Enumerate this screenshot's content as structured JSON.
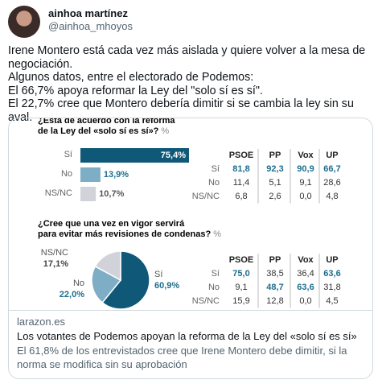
{
  "tweet": {
    "name": "ainhoa martínez",
    "handle": "@ainhoa_mhoyos",
    "lines": [
      "Irene Montero está cada vez más aislada y quiere volver a la mesa de negociación.",
      "Algunos datos, entre el electorado de Podemos:",
      "El 66,7% apoya reformar la Ley del \"solo sí es sí\".",
      "El 22,7% cree que Montero debería dimitir si se cambia la ley sin su aval."
    ]
  },
  "image": {
    "chart1": {
      "type": "bar",
      "title_lines": [
        "¿Está de acuerdo con la reforma",
        "de la Ley del «solo sí es sí»?"
      ],
      "unit": "%",
      "categories": [
        "Sí",
        "No",
        "NS/NC"
      ],
      "values": [
        75.4,
        13.9,
        10.7
      ],
      "value_labels": [
        "75,4%",
        "13,9%",
        "10,7%"
      ],
      "colors": [
        "#0f5878",
        "#7eadc6",
        "#d2d2da"
      ],
      "label_colors": [
        "#ffffff",
        "#1f6d8e",
        "#555555"
      ]
    },
    "table1": {
      "headers": [
        "PSOE",
        "PP",
        "Vox",
        "UP"
      ],
      "rows": [
        {
          "label": "Sí",
          "cells": [
            "81,8",
            "92,3",
            "90,9",
            "66,7"
          ],
          "highlight": [
            true,
            true,
            true,
            true
          ]
        },
        {
          "label": "No",
          "cells": [
            "11,4",
            "5,1",
            "9,1",
            "28,6"
          ],
          "highlight": [
            false,
            false,
            false,
            false
          ]
        },
        {
          "label": "NS/NC",
          "cells": [
            "6,8",
            "2,6",
            "0,0",
            "4,8"
          ],
          "highlight": [
            false,
            false,
            false,
            false
          ]
        }
      ]
    },
    "chart2": {
      "type": "pie",
      "title_lines": [
        "¿Cree que una vez en vigor servirá",
        "para evitar más revisiones de condenas?"
      ],
      "unit": "%",
      "categories": [
        "Sí",
        "No",
        "NS/NC"
      ],
      "values": [
        60.9,
        22.0,
        17.1
      ],
      "value_labels": [
        "60,9%",
        "22,0%",
        "17,1%"
      ],
      "colors": [
        "#0f5878",
        "#7eadc6",
        "#d2d2da"
      ],
      "label_colors": [
        "#1f6d8e",
        "#1f6d8e",
        "#444444"
      ]
    },
    "table2": {
      "headers": [
        "PSOE",
        "PP",
        "Vox",
        "UP"
      ],
      "rows": [
        {
          "label": "Sí",
          "cells": [
            "75,0",
            "38,5",
            "36,4",
            "63,6"
          ],
          "highlight": [
            true,
            false,
            false,
            true
          ]
        },
        {
          "label": "No",
          "cells": [
            "9,1",
            "48,7",
            "63,6",
            "31,8"
          ],
          "highlight": [
            false,
            true,
            true,
            false
          ]
        },
        {
          "label": "NS/NC",
          "cells": [
            "15,9",
            "12,8",
            "0,0",
            "4,5"
          ],
          "highlight": [
            false,
            false,
            false,
            false
          ]
        }
      ]
    }
  },
  "card": {
    "domain": "larazon.es",
    "title": "Los votantes de Podemos apoyan la reforma de la Ley del «solo sí es sí»",
    "description": "El 61,8% de los entrevistados cree que Irene Montero debe dimitir, si la norma se modifica sin su aprobación"
  }
}
